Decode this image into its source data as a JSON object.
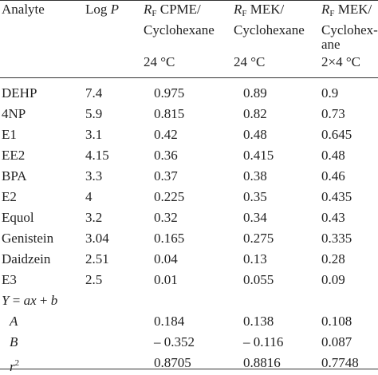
{
  "table": {
    "header": [
      [
        [
          {
            "text": "Analyte"
          }
        ]
      ],
      [
        [
          {
            "text": "Log "
          },
          {
            "text": "P",
            "italic": true
          }
        ]
      ],
      [
        [
          {
            "text": "R",
            "italic": true
          },
          {
            "text": "F",
            "sub": true
          },
          {
            "text": " CPME/"
          }
        ],
        [
          {
            "text": "Cyclohexane"
          }
        ],
        [],
        [
          {
            "text": "24 °C"
          }
        ]
      ],
      [
        [
          {
            "text": "R",
            "italic": true
          },
          {
            "text": "F",
            "sub": true
          },
          {
            "text": " MEK/"
          }
        ],
        [
          {
            "text": "Cyclohexane"
          }
        ],
        [],
        [
          {
            "text": "24 °C"
          }
        ]
      ],
      [
        [
          {
            "text": "R",
            "italic": true
          },
          {
            "text": "F",
            "sub": true
          },
          {
            "text": " MEK/"
          }
        ],
        [
          {
            "text": "Cyclohex-"
          }
        ],
        [
          {
            "text": "ane"
          }
        ],
        [
          {
            "text": "2×4 °C"
          }
        ]
      ]
    ],
    "rows": [
      [
        "DEHP",
        "7.4",
        "0.975",
        "0.89",
        "0.9"
      ],
      [
        "4NP",
        "5.9",
        "0.815",
        "0.82",
        "0.73"
      ],
      [
        "E1",
        "3.1",
        "0.42",
        "0.48",
        "0.645"
      ],
      [
        "EE2",
        "4.15",
        "0.36",
        "0.415",
        "0.48"
      ],
      [
        "BPA",
        "3.3",
        "0.37",
        "0.38",
        "0.46"
      ],
      [
        "E2",
        "4",
        "0.225",
        "0.35",
        "0.435"
      ],
      [
        "Equol",
        "3.2",
        "0.32",
        "0.34",
        "0.43"
      ],
      [
        "Genistein",
        "3.04",
        "0.165",
        "0.275",
        "0.335"
      ],
      [
        "Daidzein",
        "2.51",
        "0.04",
        "0.13",
        "0.28"
      ],
      [
        "E3",
        "2.5",
        "0.01",
        "0.055",
        "0.09"
      ],
      [
        [
          {
            "text": "Y",
            "italic": true
          },
          {
            "text": " = "
          },
          {
            "text": "ax",
            "italic": true
          },
          {
            "text": " + "
          },
          {
            "text": "b",
            "italic": true
          }
        ]
      ],
      [
        [
          {
            "text": "A",
            "italic": true
          }
        ],
        "",
        "0.184",
        "0.138",
        "0.108"
      ],
      [
        [
          {
            "text": "B",
            "italic": true
          }
        ],
        "",
        "– 0.352",
        "– 0.116",
        "0.087"
      ],
      [
        [
          {
            "text": "r",
            "italic": true
          },
          {
            "text": "2",
            "sup": true
          }
        ],
        "",
        "0.8705",
        "0.8816",
        "0.7748"
      ]
    ]
  }
}
